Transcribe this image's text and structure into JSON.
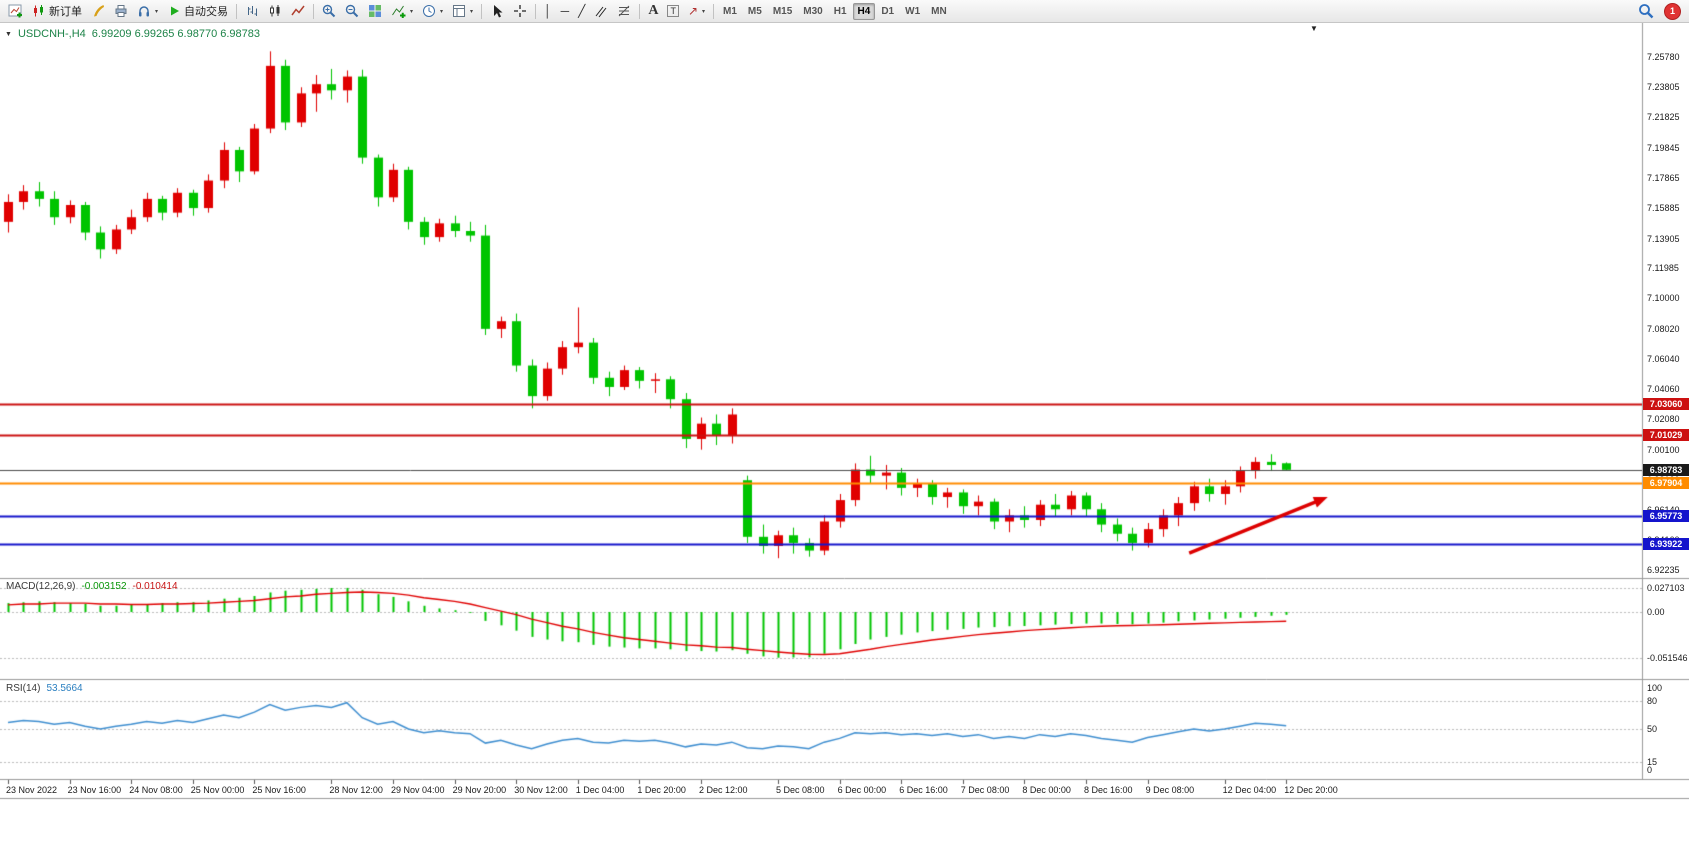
{
  "toolbar": {
    "new_order": "新订单",
    "auto_trading": "自动交易",
    "timeframes": [
      "M1",
      "M5",
      "M15",
      "M30",
      "H1",
      "H4",
      "D1",
      "W1",
      "MN"
    ],
    "active_timeframe": "H4",
    "notification_count": "1",
    "icons": {
      "vertical_line": "│",
      "horizontal_line": "─",
      "trendline": "╱",
      "arrows": "↗",
      "text": "A",
      "label": "T",
      "caret": "▾",
      "one_click": "▼",
      "shift_marker": "▼"
    }
  },
  "chart": {
    "title": "USDCNH-,H4",
    "ohlc": "6.99209  6.99265  6.98770  6.98783"
  },
  "indicators": {
    "macd": {
      "name": "MACD(12,26,9)",
      "value_main": "-0.003152",
      "value_signal": "-0.010414",
      "axis": [
        "0.027103",
        "0.00",
        "-0.051546"
      ]
    },
    "rsi": {
      "name": "RSI(14)",
      "value": "53.5664",
      "axis": [
        "100",
        "80",
        "50",
        "15",
        "0"
      ]
    }
  },
  "chart_data": {
    "type": "candlestick",
    "symbol": "USDCNH-",
    "timeframe": "H4",
    "current_bar": {
      "open": 6.99209,
      "high": 6.99265,
      "low": 6.9877,
      "close": 6.98783
    },
    "price_range": [
      6.92235,
      7.2578
    ],
    "colors": {
      "bull": "#e00000",
      "bear": "#00c400",
      "macd_hist": "#00c400",
      "macd_signal": "#e00000",
      "rsi_line": "#3e8ed0",
      "arrow": "#dd0000"
    },
    "price_axis_labels": [
      "7.25780",
      "7.23805",
      "7.21825",
      "7.19845",
      "7.17865",
      "7.15885",
      "7.13905",
      "7.11985",
      "7.10000",
      "7.08020",
      "7.06040",
      "7.04060",
      "7.02080",
      "7.00100",
      "6.98120",
      "6.96140",
      "6.94160",
      "6.92235"
    ],
    "time_axis_labels": [
      "23 Nov 2022",
      "23 Nov 16:00",
      "24 Nov 08:00",
      "25 Nov 00:00",
      "25 Nov 16:00",
      "28 Nov 12:00",
      "29 Nov 04:00",
      "29 Nov 20:00",
      "30 Nov 12:00",
      "1 Dec 04:00",
      "1 Dec 20:00",
      "2 Dec 12:00",
      "5 Dec 08:00",
      "6 Dec 00:00",
      "6 Dec 16:00",
      "7 Dec 08:00",
      "8 Dec 00:00",
      "8 Dec 16:00",
      "9 Dec 08:00",
      "12 Dec 04:00",
      "12 Dec 20:00"
    ],
    "time_label_bars": [
      0,
      4,
      8,
      12,
      16,
      21,
      25,
      29,
      33,
      37,
      41,
      45,
      50,
      54,
      58,
      62,
      66,
      70,
      74,
      79,
      83
    ],
    "levels": [
      {
        "price": 7.0306,
        "label": "7.03060",
        "color": "#cc1111",
        "width": 2
      },
      {
        "price": 7.01029,
        "label": "7.01029",
        "color": "#cc1111",
        "width": 2
      },
      {
        "price": 6.98783,
        "label": "6.98783",
        "color": "#4a4a4a",
        "width": 1,
        "tag_bg": "#1a1a1a"
      },
      {
        "price": 6.97904,
        "label": "6.97904",
        "color": "#ff8c00",
        "width": 2
      },
      {
        "price": 6.95773,
        "label": "6.95773",
        "color": "#1414cc",
        "width": 2
      },
      {
        "price": 6.93922,
        "label": "6.93922",
        "color": "#1414cc",
        "width": 2
      }
    ],
    "arrow": {
      "x1_bar": 76.7,
      "p1": 6.9334,
      "x2_bar": 85.7,
      "p2": 6.97
    },
    "candles": [
      [
        7.15,
        7.168,
        7.143,
        7.163
      ],
      [
        7.163,
        7.174,
        7.158,
        7.17
      ],
      [
        7.17,
        7.176,
        7.16,
        7.165
      ],
      [
        7.165,
        7.17,
        7.148,
        7.153
      ],
      [
        7.153,
        7.164,
        7.149,
        7.161
      ],
      [
        7.161,
        7.163,
        7.138,
        7.143
      ],
      [
        7.143,
        7.147,
        7.126,
        7.132
      ],
      [
        7.132,
        7.148,
        7.129,
        7.145
      ],
      [
        7.145,
        7.158,
        7.142,
        7.153
      ],
      [
        7.153,
        7.169,
        7.15,
        7.165
      ],
      [
        7.165,
        7.167,
        7.151,
        7.156
      ],
      [
        7.156,
        7.172,
        7.153,
        7.169
      ],
      [
        7.169,
        7.171,
        7.154,
        7.159
      ],
      [
        7.159,
        7.181,
        7.156,
        7.177
      ],
      [
        7.177,
        7.202,
        7.172,
        7.197
      ],
      [
        7.197,
        7.199,
        7.176,
        7.183
      ],
      [
        7.183,
        7.214,
        7.181,
        7.211
      ],
      [
        7.211,
        7.2615,
        7.208,
        7.252
      ],
      [
        7.252,
        7.256,
        7.21,
        7.215
      ],
      [
        7.215,
        7.238,
        7.212,
        7.234
      ],
      [
        7.234,
        7.246,
        7.222,
        7.24
      ],
      [
        7.24,
        7.25,
        7.23,
        7.236
      ],
      [
        7.236,
        7.249,
        7.228,
        7.245
      ],
      [
        7.245,
        7.2495,
        7.188,
        7.192
      ],
      [
        7.192,
        7.194,
        7.16,
        7.166
      ],
      [
        7.166,
        7.188,
        7.163,
        7.184
      ],
      [
        7.184,
        7.186,
        7.145,
        7.15
      ],
      [
        7.15,
        7.153,
        7.135,
        7.14
      ],
      [
        7.14,
        7.152,
        7.137,
        7.149
      ],
      [
        7.149,
        7.154,
        7.14,
        7.144
      ],
      [
        7.144,
        7.15,
        7.137,
        7.141
      ],
      [
        7.141,
        7.148,
        7.076,
        7.08
      ],
      [
        7.08,
        7.088,
        7.074,
        7.085
      ],
      [
        7.085,
        7.09,
        7.052,
        7.056
      ],
      [
        7.056,
        7.06,
        7.028,
        7.036
      ],
      [
        7.036,
        7.058,
        7.033,
        7.054
      ],
      [
        7.054,
        7.072,
        7.05,
        7.068
      ],
      [
        7.068,
        7.094,
        7.064,
        7.071
      ],
      [
        7.071,
        7.074,
        7.044,
        7.048
      ],
      [
        7.048,
        7.052,
        7.036,
        7.042
      ],
      [
        7.042,
        7.056,
        7.04,
        7.053
      ],
      [
        7.053,
        7.055,
        7.041,
        7.046
      ],
      [
        7.046,
        7.051,
        7.038,
        7.047
      ],
      [
        7.047,
        7.049,
        7.028,
        7.034
      ],
      [
        7.034,
        7.038,
        7.002,
        7.008
      ],
      [
        7.008,
        7.022,
        7.001,
        7.018
      ],
      [
        7.018,
        7.024,
        7.004,
        7.01
      ],
      [
        7.01,
        7.028,
        7.005,
        7.024
      ],
      [
        6.981,
        6.984,
        6.94,
        6.944
      ],
      [
        6.944,
        6.952,
        6.933,
        6.938
      ],
      [
        6.938,
        6.948,
        6.93,
        6.945
      ],
      [
        6.945,
        6.95,
        6.933,
        6.94
      ],
      [
        6.94,
        6.943,
        6.931,
        6.935
      ],
      [
        6.935,
        6.958,
        6.932,
        6.954
      ],
      [
        6.954,
        6.972,
        6.95,
        6.968
      ],
      [
        6.968,
        6.992,
        6.964,
        6.988
      ],
      [
        6.988,
        6.997,
        6.979,
        6.984
      ],
      [
        6.984,
        6.991,
        6.975,
        6.986
      ],
      [
        6.986,
        6.989,
        6.971,
        6.976
      ],
      [
        6.976,
        6.982,
        6.97,
        6.979
      ],
      [
        6.979,
        6.981,
        6.965,
        6.97
      ],
      [
        6.97,
        6.976,
        6.963,
        6.973
      ],
      [
        6.973,
        6.975,
        6.959,
        6.964
      ],
      [
        6.964,
        6.971,
        6.958,
        6.967
      ],
      [
        6.967,
        6.969,
        6.949,
        6.954
      ],
      [
        6.954,
        6.962,
        6.947,
        6.958
      ],
      [
        6.958,
        6.964,
        6.95,
        6.955
      ],
      [
        6.955,
        6.968,
        6.951,
        6.965
      ],
      [
        6.965,
        6.972,
        6.957,
        6.962
      ],
      [
        6.962,
        6.974,
        6.958,
        6.971
      ],
      [
        6.971,
        6.973,
        6.957,
        6.962
      ],
      [
        6.962,
        6.966,
        6.947,
        6.952
      ],
      [
        6.952,
        6.956,
        6.941,
        6.946
      ],
      [
        6.946,
        6.95,
        6.935,
        6.94
      ],
      [
        6.94,
        6.953,
        6.937,
        6.949
      ],
      [
        6.949,
        6.962,
        6.944,
        6.958
      ],
      [
        6.958,
        6.97,
        6.951,
        6.966
      ],
      [
        6.966,
        6.98,
        6.961,
        6.977
      ],
      [
        6.977,
        6.982,
        6.967,
        6.972
      ],
      [
        6.972,
        6.981,
        6.965,
        6.977
      ],
      [
        6.977,
        6.99,
        6.973,
        6.987
      ],
      [
        6.987,
        6.996,
        6.982,
        6.993
      ],
      [
        6.993,
        6.998,
        6.987,
        6.991
      ],
      [
        6.99209,
        6.99265,
        6.9877,
        6.98783
      ]
    ],
    "macd": [
      [
        0.01,
        0.008
      ],
      [
        0.011,
        0.009
      ],
      [
        0.012,
        0.009
      ],
      [
        0.011,
        0.01
      ],
      [
        0.01,
        0.01
      ],
      [
        0.009,
        0.01
      ],
      [
        0.007,
        0.009
      ],
      [
        0.007,
        0.009
      ],
      [
        0.008,
        0.0085
      ],
      [
        0.009,
        0.0085
      ],
      [
        0.01,
        0.009
      ],
      [
        0.011,
        0.009
      ],
      [
        0.011,
        0.0095
      ],
      [
        0.013,
        0.01
      ],
      [
        0.015,
        0.011
      ],
      [
        0.016,
        0.012
      ],
      [
        0.018,
        0.013
      ],
      [
        0.022,
        0.015
      ],
      [
        0.024,
        0.017
      ],
      [
        0.025,
        0.018
      ],
      [
        0.026,
        0.02
      ],
      [
        0.027,
        0.021
      ],
      [
        0.0271,
        0.022
      ],
      [
        0.025,
        0.0225
      ],
      [
        0.02,
        0.022
      ],
      [
        0.017,
        0.021
      ],
      [
        0.012,
        0.019
      ],
      [
        0.007,
        0.016
      ],
      [
        0.004,
        0.014
      ],
      [
        0.002,
        0.012
      ],
      [
        -0.001,
        0.009
      ],
      [
        -0.01,
        0.005
      ],
      [
        -0.015,
        0.001
      ],
      [
        -0.021,
        -0.003
      ],
      [
        -0.028,
        -0.008
      ],
      [
        -0.031,
        -0.012
      ],
      [
        -0.033,
        -0.016
      ],
      [
        -0.034,
        -0.019
      ],
      [
        -0.037,
        -0.023
      ],
      [
        -0.039,
        -0.026
      ],
      [
        -0.04,
        -0.029
      ],
      [
        -0.041,
        -0.031
      ],
      [
        -0.041,
        -0.033
      ],
      [
        -0.042,
        -0.035
      ],
      [
        -0.044,
        -0.037
      ],
      [
        -0.044,
        -0.038
      ],
      [
        -0.0445,
        -0.0395
      ],
      [
        -0.043,
        -0.04
      ],
      [
        -0.047,
        -0.042
      ],
      [
        -0.05,
        -0.0435
      ],
      [
        -0.0515,
        -0.045
      ],
      [
        -0.0512,
        -0.0465
      ],
      [
        -0.051,
        -0.0475
      ],
      [
        -0.047,
        -0.0478
      ],
      [
        -0.042,
        -0.047
      ],
      [
        -0.036,
        -0.0445
      ],
      [
        -0.031,
        -0.042
      ],
      [
        -0.028,
        -0.039
      ],
      [
        -0.0255,
        -0.0365
      ],
      [
        -0.023,
        -0.034
      ],
      [
        -0.0215,
        -0.0315
      ],
      [
        -0.02,
        -0.0295
      ],
      [
        -0.019,
        -0.0275
      ],
      [
        -0.0175,
        -0.0255
      ],
      [
        -0.017,
        -0.024
      ],
      [
        -0.016,
        -0.0225
      ],
      [
        -0.0158,
        -0.021
      ],
      [
        -0.015,
        -0.0198
      ],
      [
        -0.0142,
        -0.0188
      ],
      [
        -0.0135,
        -0.0178
      ],
      [
        -0.013,
        -0.0168
      ],
      [
        -0.013,
        -0.016
      ],
      [
        -0.0135,
        -0.0155
      ],
      [
        -0.0138,
        -0.0152
      ],
      [
        -0.013,
        -0.0148
      ],
      [
        -0.012,
        -0.0143
      ],
      [
        -0.0105,
        -0.0138
      ],
      [
        -0.0095,
        -0.0132
      ],
      [
        -0.0085,
        -0.0127
      ],
      [
        -0.0075,
        -0.0122
      ],
      [
        -0.0065,
        -0.0117
      ],
      [
        -0.0055,
        -0.0112
      ],
      [
        -0.0042,
        -0.0108
      ],
      [
        -0.003152,
        -0.010414
      ]
    ],
    "rsi": [
      57,
      59,
      58,
      55,
      57,
      53,
      50,
      53,
      55,
      58,
      56,
      59,
      57,
      61,
      65,
      62,
      68,
      76,
      70,
      73,
      75,
      73,
      78,
      62,
      55,
      58,
      50,
      46,
      48,
      46,
      45,
      35,
      38,
      33,
      29,
      34,
      38,
      40,
      36,
      35,
      38,
      37,
      38,
      35,
      31,
      34,
      33,
      36,
      30,
      29,
      32,
      31,
      29,
      36,
      40,
      46,
      45,
      46,
      44,
      45,
      43,
      45,
      42,
      44,
      40,
      42,
      40,
      44,
      42,
      45,
      43,
      40,
      38,
      36,
      41,
      44,
      47,
      50,
      48,
      50,
      53,
      56,
      55,
      53.5664
    ]
  }
}
